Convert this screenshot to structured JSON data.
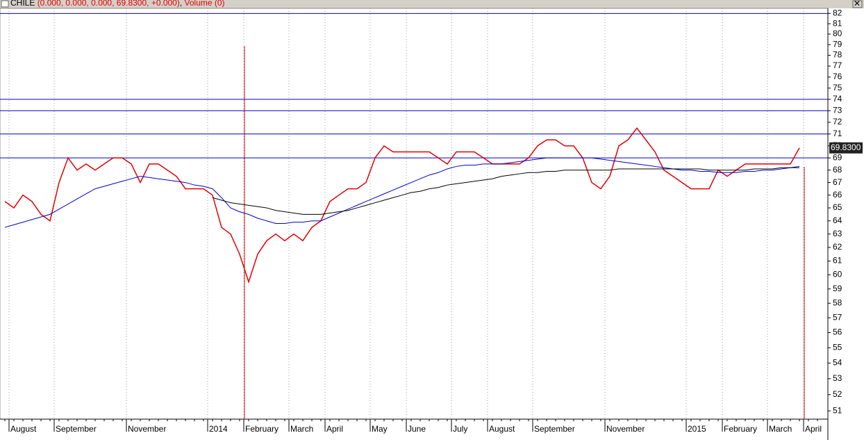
{
  "chart_data": {
    "type": "line",
    "title": "CHILE",
    "title_values": "(0.000, 0.000, 0.000, 69.8300, +0.000)",
    "volume_label": "Volume (0)",
    "log_scale": true,
    "grid": true,
    "ylim": [
      50.5,
      82.5
    ],
    "yticks": [
      51,
      52,
      53,
      54,
      55,
      56,
      57,
      58,
      59,
      60,
      61,
      62,
      63,
      64,
      65,
      66,
      67,
      68,
      69,
      70,
      71,
      72,
      73,
      74,
      75,
      76,
      77,
      78,
      79,
      80,
      81,
      82
    ],
    "hlines": [
      82,
      74,
      73,
      71,
      69
    ],
    "hline_color": "#0000cc",
    "last_value": {
      "value": 69.83,
      "label": "69.8300"
    },
    "categories": [
      null,
      "August",
      null,
      null,
      null,
      null,
      "September",
      null,
      null,
      null,
      null,
      null,
      null,
      null,
      "November",
      null,
      null,
      null,
      null,
      null,
      null,
      null,
      null,
      "2014",
      null,
      null,
      null,
      "February",
      null,
      null,
      null,
      null,
      "March",
      null,
      null,
      null,
      "April",
      null,
      null,
      null,
      null,
      "May",
      null,
      null,
      null,
      "June",
      null,
      null,
      null,
      null,
      "July",
      null,
      null,
      null,
      "August",
      null,
      null,
      null,
      null,
      "September",
      null,
      null,
      null,
      null,
      null,
      null,
      null,
      "November",
      null,
      null,
      null,
      null,
      null,
      null,
      null,
      null,
      "2015",
      null,
      null,
      null,
      "February",
      null,
      null,
      null,
      null,
      "March",
      null,
      null,
      null,
      "April",
      null
    ],
    "series": [
      {
        "color": "#e00000",
        "values": [
          65.5,
          65,
          66,
          65.5,
          64.5,
          64,
          67,
          69,
          68,
          68.5,
          68,
          68.5,
          69,
          69,
          68.5,
          67,
          68.5,
          68.5,
          68,
          67.5,
          66.5,
          66.5,
          66.5,
          66,
          63.5,
          63,
          61.5,
          59.5,
          61.5,
          62.5,
          63,
          62.5,
          63,
          62.5,
          63.5,
          64,
          65.5,
          66,
          66.5,
          66.5,
          67,
          69,
          70,
          69.5,
          69.5,
          69.5,
          69.5,
          69.5,
          69,
          68.5,
          69.5,
          69.5,
          69.5,
          69,
          68.5,
          68.5,
          68.5,
          68.5,
          69,
          70,
          70.5,
          70.5,
          70,
          70,
          69,
          67,
          66.5,
          67.5,
          70,
          70.5,
          71.5,
          70.5,
          69.5,
          68,
          67.5,
          67,
          66.5,
          66.5,
          66.5,
          68,
          67.5,
          68,
          68.5,
          68.5,
          68.5,
          68.5,
          68.5,
          68.5,
          69.83,
          null,
          null
        ]
      },
      {
        "color": "#0000cc",
        "values": [
          63.5,
          63.7,
          63.9,
          64.1,
          64.3,
          64.5,
          64.9,
          65.3,
          65.7,
          66.1,
          66.5,
          66.7,
          66.9,
          67.1,
          67.3,
          67.5,
          67.4,
          67.3,
          67.2,
          67.1,
          67,
          66.8,
          66.7,
          66.5,
          65.8,
          65,
          64.7,
          64.5,
          64.2,
          64,
          63.8,
          63.8,
          63.9,
          63.9,
          64,
          64,
          64.3,
          64.6,
          64.9,
          65.2,
          65.5,
          65.8,
          66.1,
          66.4,
          66.7,
          67,
          67.3,
          67.6,
          67.8,
          68.1,
          68.3,
          68.4,
          68.4,
          68.5,
          68.5,
          68.5,
          68.6,
          68.7,
          68.8,
          68.9,
          69,
          69,
          69,
          69,
          69,
          69,
          68.9,
          68.8,
          68.7,
          68.6,
          68.5,
          68.4,
          68.3,
          68.2,
          68.1,
          68,
          68,
          67.9,
          67.9,
          67.8,
          67.8,
          67.8,
          67.9,
          67.9,
          68,
          68,
          68.1,
          68.2,
          68.3,
          null,
          null
        ]
      },
      {
        "color": "#000000",
        "values": [
          null,
          null,
          null,
          null,
          null,
          null,
          null,
          null,
          null,
          null,
          null,
          null,
          null,
          null,
          null,
          null,
          null,
          null,
          null,
          null,
          null,
          null,
          null,
          65.8,
          65.6,
          65.4,
          65.3,
          65.2,
          65.1,
          65,
          64.8,
          64.7,
          64.6,
          64.5,
          64.5,
          64.5,
          64.6,
          64.7,
          64.8,
          65,
          65.2,
          65.4,
          65.6,
          65.8,
          66,
          66.2,
          66.3,
          66.5,
          66.6,
          66.8,
          66.9,
          67,
          67.1,
          67.2,
          67.3,
          67.5,
          67.6,
          67.7,
          67.8,
          67.8,
          67.9,
          67.9,
          68,
          68,
          68,
          68,
          68,
          68,
          68.1,
          68.1,
          68.1,
          68.1,
          68.1,
          68.1,
          68.1,
          68.1,
          68.1,
          68.1,
          68,
          68,
          68,
          68,
          68,
          68.1,
          68.1,
          68.1,
          68.2,
          68.2,
          68.2,
          null,
          null
        ]
      }
    ]
  }
}
